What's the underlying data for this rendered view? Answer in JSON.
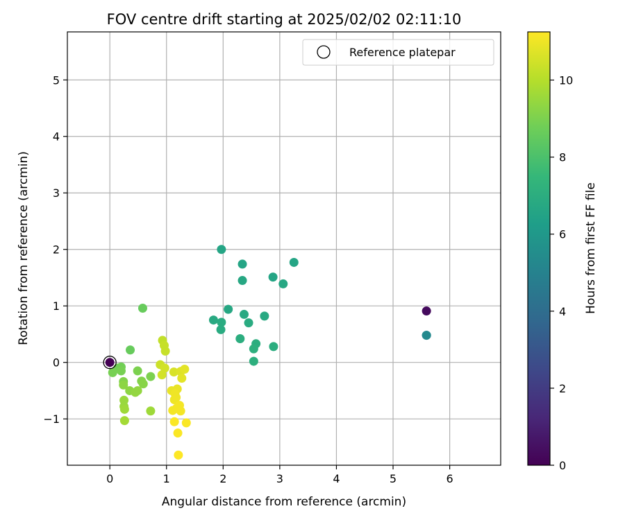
{
  "chart_data": {
    "type": "scatter",
    "title": "FOV centre drift starting at 2025/02/02 02:11:10",
    "xlabel": "Angular distance from reference (arcmin)",
    "ylabel": "Rotation from reference (arcmin)",
    "xlim": [
      -0.75,
      6.9
    ],
    "ylim": [
      -1.82,
      5.85
    ],
    "xticks": [
      0,
      1,
      2,
      3,
      4,
      5,
      6
    ],
    "xtick_labels": [
      "0",
      "1",
      "2",
      "3",
      "4",
      "5",
      "6"
    ],
    "yticks": [
      -1,
      0,
      1,
      2,
      3,
      4,
      5
    ],
    "ytick_labels": [
      "−1",
      "0",
      "1",
      "2",
      "3",
      "4",
      "5"
    ],
    "grid": true,
    "legend": {
      "position": "top-right",
      "entries": [
        {
          "label": "Reference platepar",
          "marker": "open-circle"
        }
      ]
    },
    "reference_point": {
      "x": 0,
      "y": 0
    },
    "colorbar": {
      "label": "Hours from first FF file",
      "colormap": "viridis",
      "range": [
        0,
        11.25
      ],
      "ticks": [
        0,
        2,
        4,
        6,
        8,
        10
      ],
      "tick_labels": [
        "0",
        "2",
        "4",
        "6",
        "8",
        "10"
      ]
    },
    "colormap_stops": [
      "#440154",
      "#482878",
      "#3e4989",
      "#31688e",
      "#26828e",
      "#1f9e89",
      "#35b779",
      "#6ece58",
      "#b5de2b",
      "#fde725"
    ],
    "points": [
      {
        "x": 0.0,
        "y": 0.0,
        "c": 0.0
      },
      {
        "x": 5.59,
        "y": 0.91,
        "c": 0.3
      },
      {
        "x": 5.59,
        "y": 0.48,
        "c": 5.0
      },
      {
        "x": 5.59,
        "y": 0.48,
        "c": 5.3
      },
      {
        "x": 1.97,
        "y": 2.0,
        "c": 6.6
      },
      {
        "x": 2.34,
        "y": 1.74,
        "c": 6.6
      },
      {
        "x": 3.25,
        "y": 1.77,
        "c": 6.6
      },
      {
        "x": 2.88,
        "y": 1.51,
        "c": 6.6
      },
      {
        "x": 2.34,
        "y": 1.45,
        "c": 6.7
      },
      {
        "x": 3.06,
        "y": 1.39,
        "c": 6.7
      },
      {
        "x": 2.09,
        "y": 0.94,
        "c": 6.7
      },
      {
        "x": 2.37,
        "y": 0.85,
        "c": 6.8
      },
      {
        "x": 2.73,
        "y": 0.82,
        "c": 6.8
      },
      {
        "x": 1.83,
        "y": 0.75,
        "c": 6.8
      },
      {
        "x": 1.97,
        "y": 0.71,
        "c": 6.9
      },
      {
        "x": 2.45,
        "y": 0.7,
        "c": 6.9
      },
      {
        "x": 1.96,
        "y": 0.58,
        "c": 6.9
      },
      {
        "x": 2.3,
        "y": 0.42,
        "c": 7.0
      },
      {
        "x": 2.58,
        "y": 0.33,
        "c": 7.0
      },
      {
        "x": 2.89,
        "y": 0.28,
        "c": 7.0
      },
      {
        "x": 2.54,
        "y": 0.24,
        "c": 7.1
      },
      {
        "x": 2.54,
        "y": 0.02,
        "c": 7.1
      },
      {
        "x": 0.58,
        "y": 0.96,
        "c": 8.6
      },
      {
        "x": 0.36,
        "y": 0.22,
        "c": 8.6
      },
      {
        "x": 0.2,
        "y": -0.08,
        "c": 8.8
      },
      {
        "x": 0.14,
        "y": -0.1,
        "c": 8.8
      },
      {
        "x": 0.2,
        "y": -0.15,
        "c": 8.9
      },
      {
        "x": 0.05,
        "y": -0.18,
        "c": 8.9
      },
      {
        "x": 0.49,
        "y": -0.15,
        "c": 9.0
      },
      {
        "x": 0.72,
        "y": -0.25,
        "c": 9.0
      },
      {
        "x": 0.24,
        "y": -0.34,
        "c": 9.1
      },
      {
        "x": 0.56,
        "y": -0.33,
        "c": 9.1
      },
      {
        "x": 0.59,
        "y": -0.38,
        "c": 9.2
      },
      {
        "x": 0.24,
        "y": -0.4,
        "c": 9.3
      },
      {
        "x": 0.35,
        "y": -0.5,
        "c": 9.3
      },
      {
        "x": 0.49,
        "y": -0.5,
        "c": 9.4
      },
      {
        "x": 0.45,
        "y": -0.53,
        "c": 9.4
      },
      {
        "x": 0.25,
        "y": -0.67,
        "c": 9.5
      },
      {
        "x": 0.25,
        "y": -0.78,
        "c": 9.5
      },
      {
        "x": 0.26,
        "y": -0.83,
        "c": 9.6
      },
      {
        "x": 0.72,
        "y": -0.86,
        "c": 9.6
      },
      {
        "x": 0.26,
        "y": -1.03,
        "c": 9.7
      },
      {
        "x": 0.93,
        "y": 0.39,
        "c": 10.2
      },
      {
        "x": 0.96,
        "y": 0.3,
        "c": 10.3
      },
      {
        "x": 0.98,
        "y": 0.2,
        "c": 10.3
      },
      {
        "x": 0.89,
        "y": -0.04,
        "c": 10.4
      },
      {
        "x": 0.97,
        "y": -0.1,
        "c": 10.5
      },
      {
        "x": 0.92,
        "y": -0.22,
        "c": 10.5
      },
      {
        "x": 1.13,
        "y": -0.17,
        "c": 10.6
      },
      {
        "x": 1.25,
        "y": -0.16,
        "c": 10.7
      },
      {
        "x": 1.32,
        "y": -0.12,
        "c": 10.8
      },
      {
        "x": 1.27,
        "y": -0.28,
        "c": 10.8
      },
      {
        "x": 1.19,
        "y": -0.47,
        "c": 10.9
      },
      {
        "x": 1.09,
        "y": -0.5,
        "c": 10.9
      },
      {
        "x": 1.15,
        "y": -0.55,
        "c": 11.0
      },
      {
        "x": 1.17,
        "y": -0.62,
        "c": 11.0
      },
      {
        "x": 1.14,
        "y": -0.66,
        "c": 11.0
      },
      {
        "x": 1.23,
        "y": -0.76,
        "c": 11.1
      },
      {
        "x": 1.18,
        "y": -0.81,
        "c": 11.1
      },
      {
        "x": 1.11,
        "y": -0.85,
        "c": 11.1
      },
      {
        "x": 1.25,
        "y": -0.86,
        "c": 11.1
      },
      {
        "x": 1.14,
        "y": -1.05,
        "c": 11.2
      },
      {
        "x": 1.35,
        "y": -1.07,
        "c": 11.2
      },
      {
        "x": 1.2,
        "y": -1.25,
        "c": 11.2
      },
      {
        "x": 1.21,
        "y": -1.64,
        "c": 11.25
      }
    ]
  }
}
